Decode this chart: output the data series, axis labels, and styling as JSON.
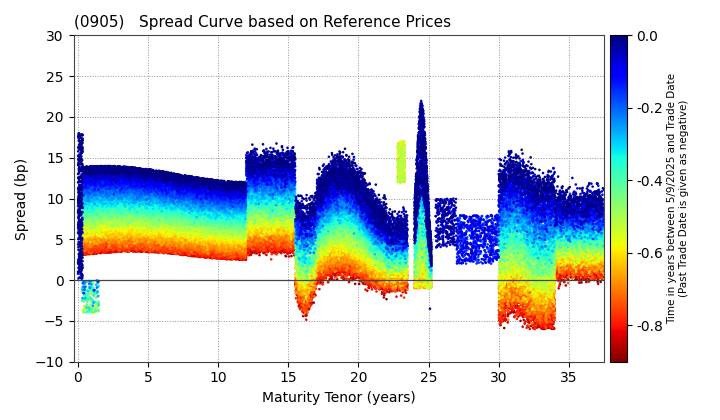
{
  "title": "(0905)   Spread Curve based on Reference Prices",
  "xlabel": "Maturity Tenor (years)",
  "ylabel": "Spread (bp)",
  "colorbar_label": "Time in years between 5/9/2025 and Trade Date\n(Past Trade Date is given as negative)",
  "xlim": [
    -0.3,
    37.5
  ],
  "ylim": [
    -10,
    30
  ],
  "yticks": [
    -10,
    -5,
    0,
    5,
    10,
    15,
    20,
    25,
    30
  ],
  "xticks": [
    0,
    5,
    10,
    15,
    20,
    25,
    30,
    35
  ],
  "cmap": "jet_r",
  "vmin": -0.9,
  "vmax": 0.0,
  "colorbar_ticks": [
    0.0,
    -0.2,
    -0.4,
    -0.6,
    -0.8
  ],
  "seed": 42,
  "bg_color": "#ffffff",
  "grid_color": "#888888",
  "hline_color": "#444444"
}
